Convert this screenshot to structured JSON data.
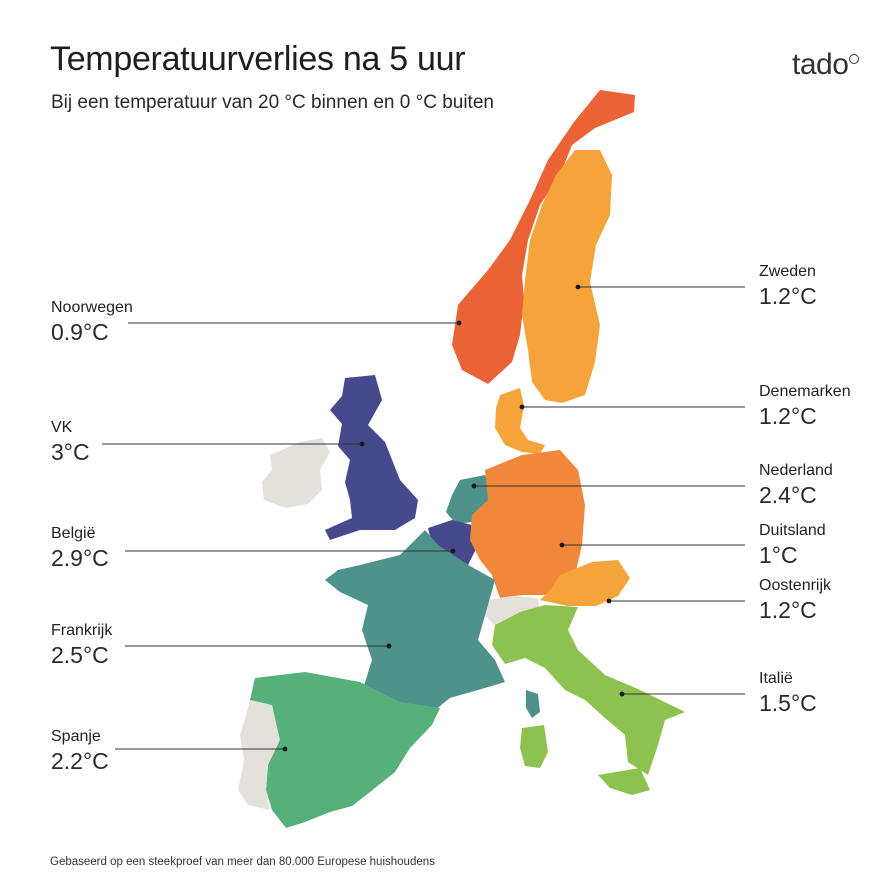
{
  "header": {
    "title": "Temperatuurverlies na 5 uur",
    "subtitle": "Bij een temperatuur van 20 °C binnen en 0 °C buiten"
  },
  "logo": {
    "text": "tado",
    "icon": "tado-logo-icon"
  },
  "colors": {
    "orange_red": "#ea6236",
    "orange": "#f0873a",
    "light_orange": "#f5a43b",
    "navy": "#464a8c",
    "teal": "#4f918b",
    "green": "#56b07a",
    "light_green": "#8dc250",
    "grey": "#e4e1dc",
    "leader_line": "#333333"
  },
  "countries": [
    {
      "name": "Noorwegen",
      "value": "0.9°C",
      "color": "#ea6236"
    },
    {
      "name": "VK",
      "value": "3°C",
      "color": "#464a8c"
    },
    {
      "name": "België",
      "value": "2.9°C",
      "color": "#464a8c"
    },
    {
      "name": "Frankrijk",
      "value": "2.5°C",
      "color": "#4f918b"
    },
    {
      "name": "Spanje",
      "value": "2.2°C",
      "color": "#56b07a"
    },
    {
      "name": "Zweden",
      "value": "1.2°C",
      "color": "#f5a43b"
    },
    {
      "name": "Denemarken",
      "value": "1.2°C",
      "color": "#f5a43b"
    },
    {
      "name": "Nederland",
      "value": "2.4°C",
      "color": "#4f918b"
    },
    {
      "name": "Duitsland",
      "value": "1°C",
      "color": "#f0873a"
    },
    {
      "name": "Oostenrijk",
      "value": "1.2°C",
      "color": "#f5a43b"
    },
    {
      "name": "Italië",
      "value": "1.5°C",
      "color": "#8dc250"
    }
  ],
  "footnote": "Gebaseerd op een steekproef van meer dan 80.000 Europese huishoudens"
}
